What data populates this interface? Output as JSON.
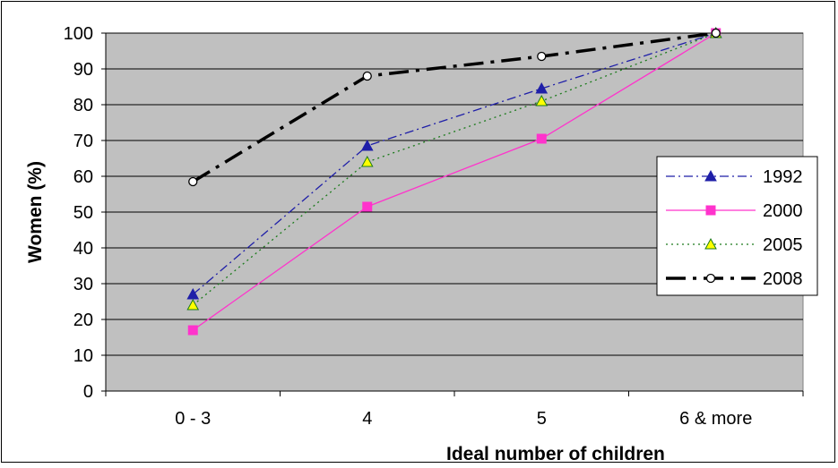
{
  "chart_data": {
    "type": "line",
    "title": "",
    "xlabel": "Ideal number of children",
    "ylabel": "Women (%)",
    "categories": [
      "0 - 3",
      "4",
      "5",
      "6 & more"
    ],
    "ylim": [
      0,
      100
    ],
    "yticks": [
      0,
      10,
      20,
      30,
      40,
      50,
      60,
      70,
      80,
      90,
      100
    ],
    "grid": true,
    "legend_position": "right",
    "series": [
      {
        "name": "1992",
        "values": [
          27,
          68.5,
          84.5,
          100
        ],
        "color": "#1f1fa8",
        "marker": "triangle-filled",
        "line": "dash-dot"
      },
      {
        "name": "2000",
        "values": [
          17,
          51.5,
          70.5,
          100
        ],
        "color": "#ff33cc",
        "marker": "square-filled",
        "line": "solid"
      },
      {
        "name": "2005",
        "values": [
          24,
          64,
          81,
          100
        ],
        "color": "#1a7a1a",
        "marker": "triangle-yellow",
        "line": "dotted"
      },
      {
        "name": "2008",
        "values": [
          58.5,
          88,
          93.5,
          100
        ],
        "color": "#000000",
        "marker": "circle-open",
        "line": "long-dash-dot"
      }
    ]
  }
}
